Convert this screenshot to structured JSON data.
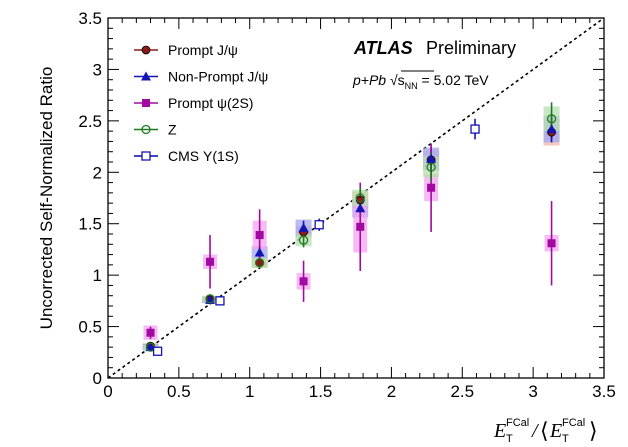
{
  "chart_data": {
    "type": "scatter",
    "title": "",
    "annotations": {
      "atlas": "ATLAS",
      "preliminary": "Preliminary",
      "collision_prefix": "p+Pb ",
      "sqrt_symbol": "√",
      "sqrt_s": "s",
      "sqrt_sub": "NN",
      "collision_energy": " = 5.02 TeV"
    },
    "xlabel": {
      "symbol": "E",
      "sub": "T",
      "sup": "FCal",
      "slash": "/",
      "open": "⟨",
      "close": "⟩"
    },
    "ylabel": "Uncorrected Self-Normalized Ratio",
    "xlim": [
      0,
      3.5
    ],
    "ylim": [
      0,
      3.5
    ],
    "xticks": [
      "0",
      "0.5",
      "1",
      "1.5",
      "2",
      "2.5",
      "3",
      "3.5"
    ],
    "yticks": [
      "0",
      "0.5",
      "1",
      "1.5",
      "2",
      "2.5",
      "3",
      "3.5"
    ],
    "reference_line": {
      "from": [
        0,
        0
      ],
      "to": [
        3.5,
        3.5
      ],
      "style": "dashed"
    },
    "series": [
      {
        "name": "Prompt J/ψ",
        "color": "#8b1a1a",
        "box_color": "#f4b8a8",
        "marker": "circle",
        "points": [
          {
            "x": 0.3,
            "y": 0.31,
            "err": 0.02,
            "sys": 0.03
          },
          {
            "x": 0.72,
            "y": 0.76,
            "err": 0.02,
            "sys": 0.03
          },
          {
            "x": 1.07,
            "y": 1.12,
            "err": 0.03,
            "sys": 0.05
          },
          {
            "x": 1.38,
            "y": 1.42,
            "err": 0.04,
            "sys": 0.06
          },
          {
            "x": 1.78,
            "y": 1.73,
            "err": 0.05,
            "sys": 0.08
          },
          {
            "x": 2.28,
            "y": 2.12,
            "err": 0.07,
            "sys": 0.1
          },
          {
            "x": 3.13,
            "y": 2.39,
            "err": 0.07,
            "sys": 0.13
          }
        ]
      },
      {
        "name": "Non-Prompt J/ψ",
        "color": "#1414b4",
        "box_color": "#a0a8f0",
        "marker": "triangle",
        "points": [
          {
            "x": 0.3,
            "y": 0.3,
            "err": 0.03,
            "sys": 0.03
          },
          {
            "x": 0.72,
            "y": 0.76,
            "err": 0.03,
            "sys": 0.03
          },
          {
            "x": 1.07,
            "y": 1.22,
            "err": 0.06,
            "sys": 0.06
          },
          {
            "x": 1.38,
            "y": 1.46,
            "err": 0.07,
            "sys": 0.08
          },
          {
            "x": 1.78,
            "y": 1.65,
            "err": 0.09,
            "sys": 0.09
          },
          {
            "x": 2.28,
            "y": 2.13,
            "err": 0.12,
            "sys": 0.11
          },
          {
            "x": 3.13,
            "y": 2.42,
            "err": 0.13,
            "sys": 0.13
          }
        ]
      },
      {
        "name": "Prompt ψ(2S)",
        "color": "#a00aa0",
        "box_color": "#f5a3f0",
        "marker": "square",
        "points": [
          {
            "x": 0.3,
            "y": 0.44,
            "err": 0.06,
            "sys": 0.07
          },
          {
            "x": 0.72,
            "y": 1.13,
            "err": 0.26,
            "sys": 0.07
          },
          {
            "x": 1.07,
            "y": 1.39,
            "err": 0.25,
            "sys": 0.14
          },
          {
            "x": 1.38,
            "y": 0.94,
            "err": 0.2,
            "sys": 0.08
          },
          {
            "x": 1.78,
            "y": 1.47,
            "err": 0.43,
            "sys": 0.25
          },
          {
            "x": 2.28,
            "y": 1.85,
            "err": 0.43,
            "sys": 0.13
          },
          {
            "x": 3.13,
            "y": 1.31,
            "err": 0.41,
            "sys": 0.08
          }
        ]
      },
      {
        "name": "Z",
        "color": "#1f7a1f",
        "box_color": "#b8dfb0",
        "marker": "open-circle",
        "points": [
          {
            "x": 0.3,
            "y": 0.3,
            "err": 0.02,
            "sys": 0.02
          },
          {
            "x": 0.72,
            "y": 0.77,
            "err": 0.03,
            "sys": 0.03
          },
          {
            "x": 1.07,
            "y": 1.12,
            "err": 0.05,
            "sys": 0.05
          },
          {
            "x": 1.38,
            "y": 1.34,
            "err": 0.07,
            "sys": 0.06
          },
          {
            "x": 1.78,
            "y": 1.75,
            "err": 0.1,
            "sys": 0.08
          },
          {
            "x": 2.28,
            "y": 2.05,
            "err": 0.14,
            "sys": 0.1
          },
          {
            "x": 3.13,
            "y": 2.52,
            "err": 0.16,
            "sys": 0.12
          }
        ]
      },
      {
        "name": "CMS Υ(1S)",
        "color": "#1414b4",
        "box_color": "",
        "marker": "open-square",
        "points": [
          {
            "x": 0.35,
            "y": 0.26,
            "err": 0.0,
            "sys": 0.0
          },
          {
            "x": 0.79,
            "y": 0.75,
            "err": 0.02,
            "sys": 0.0
          },
          {
            "x": 1.49,
            "y": 1.49,
            "err": 0.06,
            "sys": 0.0
          },
          {
            "x": 2.59,
            "y": 2.42,
            "err": 0.1,
            "sys": 0.0
          }
        ]
      }
    ]
  }
}
